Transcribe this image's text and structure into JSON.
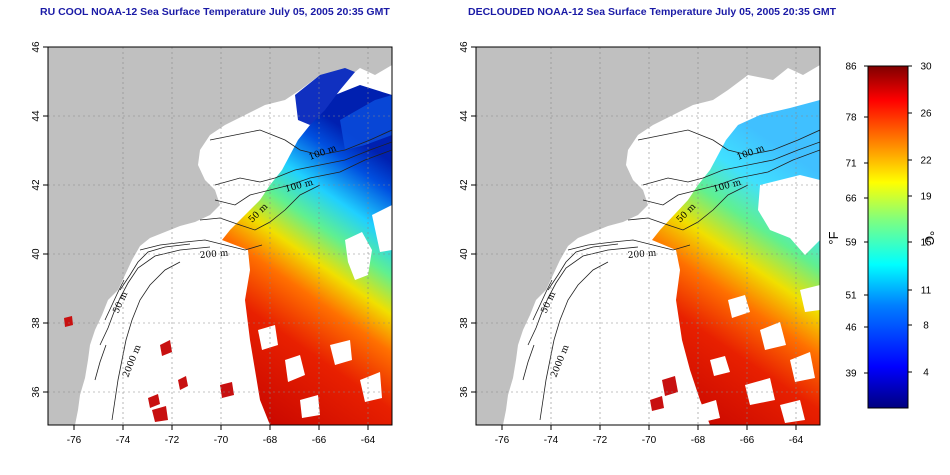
{
  "panels": [
    {
      "id": "rucool",
      "title": "RU COOL NOAA-12 Sea Surface Temperature July 05, 2005 20:35 GMT",
      "contour_labels": [
        "100 m",
        "100 m",
        "50 m",
        "200 m",
        "50 m",
        "2000 m"
      ]
    },
    {
      "id": "declouded",
      "title": "DECLOUDED NOAA-12 Sea Surface Temperature July 05, 2005 20:35 GMT",
      "contour_labels": [
        "100 m",
        "100 m",
        "50 m",
        "200 m",
        "50 m",
        "2000 m"
      ]
    }
  ],
  "axes": {
    "x_ticks": [
      "-76",
      "-74",
      "-72",
      "-70",
      "-68",
      "-66",
      "-64"
    ],
    "y_ticks": [
      "46",
      "44",
      "42",
      "40",
      "38",
      "36"
    ]
  },
  "colorbar": {
    "unit_f": "°F",
    "unit_c": "°C",
    "f_ticks": [
      "86",
      "78",
      "71",
      "66",
      "59",
      "51",
      "46",
      "39"
    ],
    "c_ticks": [
      "30",
      "26",
      "22",
      "19",
      "15",
      "11",
      "8",
      "4"
    ]
  },
  "colors": {
    "land": "#c0c0c0",
    "ocean": "#ffffff",
    "title": "#1a1aa6",
    "scale": [
      "#00007f",
      "#0000ff",
      "#007fff",
      "#00ffff",
      "#7fff7f",
      "#ffff00",
      "#ff7f00",
      "#ff0000",
      "#7f0000"
    ]
  }
}
